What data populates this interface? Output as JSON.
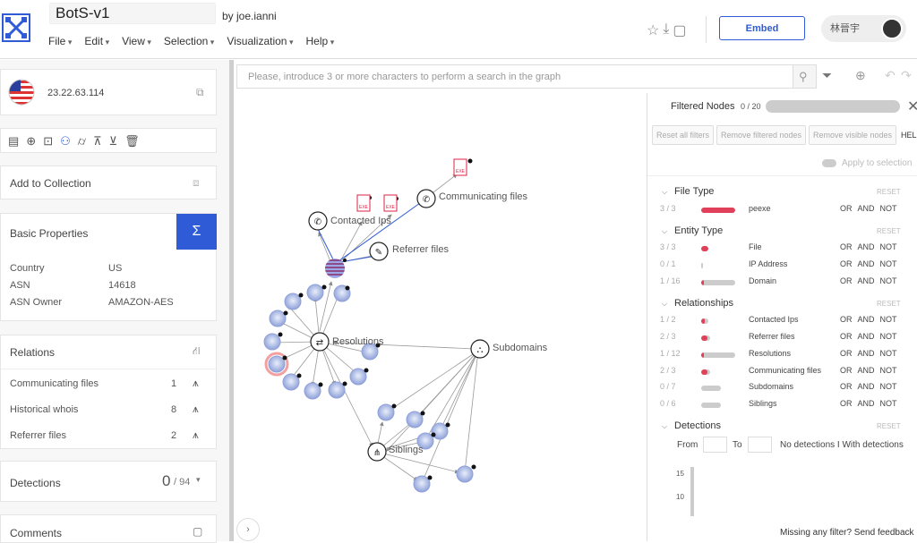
{
  "app": {
    "title": "BotS-v1",
    "byline": "by joe.ianni"
  },
  "menu": [
    "File",
    "Edit",
    "View",
    "Selection",
    "Visualization",
    "Help"
  ],
  "header": {
    "embed_label": "Embed",
    "user_name": "林晉宇"
  },
  "entity": {
    "ip": "23.22.63.114",
    "flag": "us-flag-icon"
  },
  "collection": {
    "label": "Add to Collection"
  },
  "basic": {
    "title": "Basic Properties",
    "props": [
      {
        "k": "Country",
        "v": "US"
      },
      {
        "k": "ASN",
        "v": "14618"
      },
      {
        "k": "ASN Owner",
        "v": "AMAZON-AES"
      }
    ]
  },
  "relations": {
    "title": "Relations",
    "items": [
      {
        "name": "Communicating files",
        "count": "1"
      },
      {
        "name": "Historical whois",
        "count": "8"
      },
      {
        "name": "Referrer files",
        "count": "2"
      }
    ]
  },
  "detections": {
    "title": "Detections",
    "value": "0",
    "total": "/ 94"
  },
  "comments": {
    "title": "Comments"
  },
  "search": {
    "placeholder": "Please, introduce 3 or more characters to perform a search in the graph"
  },
  "graph": {
    "labels": {
      "communicating": "Communicating files",
      "contacted": "Contacted Ips",
      "referrer": "Referrer files",
      "resolutions": "Resolutions",
      "subdomains": "Subdomains",
      "siblings": "Siblings"
    }
  },
  "filters": {
    "title": "Filtered Nodes",
    "count": "0 / 20",
    "buttons": [
      "Reset all filters",
      "Remove filtered nodes",
      "Remove visible nodes",
      "HELP"
    ],
    "apply": "Apply to selection",
    "reset": "RESET",
    "ops": [
      "OR",
      "AND",
      "NOT"
    ],
    "sections": [
      {
        "title": "File Type",
        "rows": [
          {
            "cnt": "3 / 3",
            "name": "peexe",
            "frac": 1.0
          }
        ]
      },
      {
        "title": "Entity Type",
        "rows": [
          {
            "cnt": "3 / 3",
            "name": "File",
            "frac": 1.0
          },
          {
            "cnt": "0 / 1",
            "name": "IP Address",
            "frac": 0.0
          },
          {
            "cnt": "1 / 16",
            "name": "Domain",
            "frac": 0.06
          }
        ]
      },
      {
        "title": "Relationships",
        "rows": [
          {
            "cnt": "1 / 2",
            "name": "Contacted Ips",
            "frac": 0.5
          },
          {
            "cnt": "2 / 3",
            "name": "Referrer files",
            "frac": 0.67
          },
          {
            "cnt": "1 / 12",
            "name": "Resolutions",
            "frac": 0.08
          },
          {
            "cnt": "2 / 3",
            "name": "Communicating files",
            "frac": 0.67
          },
          {
            "cnt": "0 / 7",
            "name": "Subdomains",
            "frac": 0.0
          },
          {
            "cnt": "0 / 6",
            "name": "Siblings",
            "frac": 0.0
          }
        ]
      }
    ],
    "detections": {
      "title": "Detections",
      "from": "From",
      "to": "To",
      "mode": "No detections I With detections",
      "ticks": [
        "15",
        "10"
      ]
    },
    "feedback": "Missing any filter? Send feedback"
  }
}
